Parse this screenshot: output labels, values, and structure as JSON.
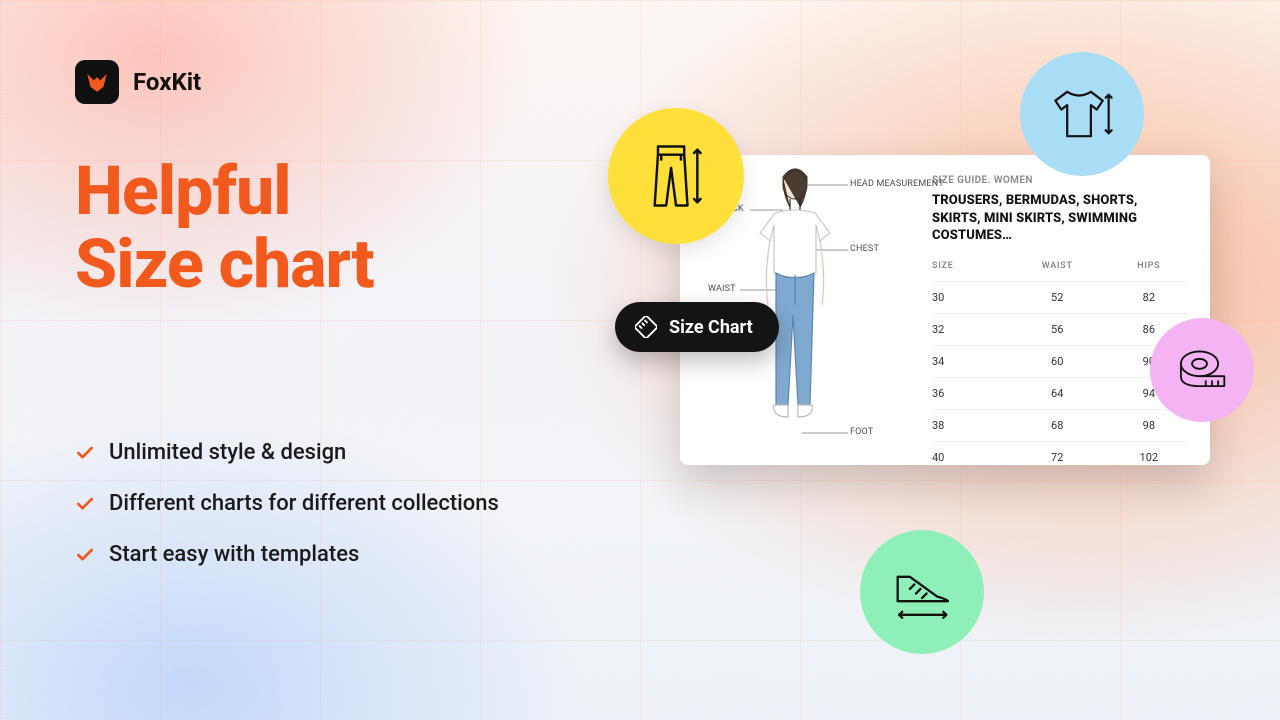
{
  "colors": {
    "accent": "#f25a1d",
    "text": "#1a1a1a",
    "brand_bg": "#101010",
    "pill_bg": "#141414",
    "badge_yellow": "#ffe03a",
    "badge_blue": "#a9ddf6",
    "badge_pink": "#f4b4f3",
    "badge_green": "#8ef0b8",
    "card_bg": "#ffffff",
    "grid_line": "rgba(255,130,70,0.10)"
  },
  "brand": {
    "name": "FoxKit"
  },
  "headline": {
    "line1": "Helpful",
    "line2": "Size chart"
  },
  "features": [
    "Unlimited style & design",
    "Different charts for different collections",
    "Start easy with templates"
  ],
  "pill": {
    "label": "Size Chart"
  },
  "card": {
    "eyebrow": "SIZE GUIDE. WOMEN",
    "title": "TROUSERS, BERMUDAS, SHORTS, SKIRTS, MINI SKIRTS, SWIMMING COSTUMES…",
    "labels": {
      "head": "HEAD MEASUREMENT",
      "neck": "NECK",
      "chest": "CHEST",
      "waist": "WAIST",
      "foot": "FOOT"
    },
    "table": {
      "columns": [
        "SIZE",
        "WAIST",
        "HIPS"
      ],
      "rows": [
        [
          "30",
          "52",
          "82"
        ],
        [
          "32",
          "56",
          "86"
        ],
        [
          "34",
          "60",
          "90"
        ],
        [
          "36",
          "64",
          "94"
        ],
        [
          "38",
          "68",
          "98"
        ],
        [
          "40",
          "72",
          "102"
        ]
      ]
    }
  },
  "badges": {
    "yellow": "trousers-icon",
    "blue": "tshirt-icon",
    "pink": "measuring-tape-icon",
    "green": "shoe-icon"
  }
}
